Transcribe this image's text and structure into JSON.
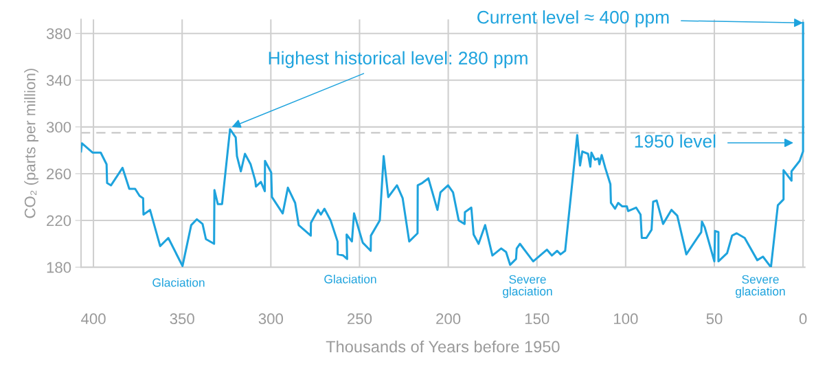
{
  "chart_data": {
    "type": "line",
    "xlabel": "Thousands of Years before 1950",
    "ylabel": "CO₂ (parts per million)",
    "xlim": [
      407,
      -1
    ],
    "ylim": [
      180,
      392
    ],
    "xticks": [
      400,
      350,
      300,
      250,
      200,
      150,
      100,
      50,
      0
    ],
    "yticks": [
      180,
      220,
      260,
      300,
      340,
      380
    ],
    "grid": true,
    "marker": "none",
    "line_style": "solid",
    "ref_lines": [
      {
        "axis": "y",
        "value": 295,
        "color": "#c8c8c8",
        "line_style": "dashed"
      }
    ],
    "annotations": [
      {
        "text": "Highest historical level: 280 ppm",
        "x": 322,
        "y": 300
      },
      {
        "text": "Current level ≈ 400 ppm",
        "x": 0,
        "y": 389
      },
      "1950 level",
      "Glaciation",
      "Glaciation",
      "Severe\nglaciation",
      "Severe\nglaciation"
    ],
    "series": [
      {
        "color": "#1ea3dd",
        "x": [
          407,
          406.5,
          400.4,
          395.9,
          392.6,
          392.3,
          390.1,
          383.6,
          379.8,
          376.5,
          374,
          372,
          371.8,
          368.1,
          362.4,
          357.8,
          349.8,
          344.9,
          341.7,
          338.5,
          336.6,
          332,
          331.8,
          329.9,
          327.5,
          323,
          319.8,
          319.1,
          316.9,
          314.6,
          311.4,
          308.8,
          308.4,
          305.6,
          303.4,
          303.3,
          299.8,
          299.4,
          293.3,
          290.4,
          286.3,
          284.3,
          277.5,
          277.4,
          273.4,
          271.8,
          269.8,
          266.3,
          262.4,
          262.3,
          259.2,
          257,
          257.3,
          254.3,
          253.1,
          248.2,
          243.7,
          243.6,
          238.6,
          236.4,
          233.8,
          228.9,
          225.7,
          222,
          217.3,
          217.2,
          214.7,
          211.2,
          206.1,
          204.4,
          200.1,
          197.3,
          194.1,
          190.8,
          190.6,
          187,
          185.7,
          182.9,
          179.2,
          175.1,
          170.2,
          167.4,
          165.1,
          161.8,
          161.4,
          159.6,
          152.1,
          144.4,
          141.6,
          138.6,
          136.7,
          134.1,
          127.3,
          125.7,
          124.4,
          121.2,
          119.9,
          119.3,
          117.3,
          115.4,
          114.8,
          113.5,
          111.5,
          108.6,
          108.3,
          106,
          104.2,
          101.9,
          99.3,
          98.6,
          94.1,
          91.6,
          90.9,
          88.3,
          85.4,
          84.5,
          82.5,
          78.9,
          74.2,
          70.9,
          65.8,
          57.4,
          57,
          55.4,
          50,
          49.6,
          47.7,
          47.7,
          42.8,
          40,
          37.4,
          32.9,
          25.8,
          22.6,
          18.1,
          14.2,
          11,
          11,
          6.5,
          6.5,
          1.9,
          0,
          0
        ],
        "values": [
          279,
          286,
          278,
          278,
          268,
          252,
          250,
          265,
          247,
          247,
          241,
          239,
          225,
          229,
          198,
          205,
          181,
          216,
          221,
          217,
          204,
          200,
          246,
          234,
          234,
          298,
          291,
          275,
          262,
          277,
          268,
          254,
          249,
          253,
          245,
          271,
          261,
          240,
          226,
          248,
          235,
          216,
          207,
          218,
          229,
          225,
          230,
          220,
          202,
          191,
          190,
          187,
          208,
          202,
          226,
          201,
          194,
          207,
          220,
          275,
          240,
          250,
          239,
          202,
          209,
          250,
          252,
          256,
          229,
          244,
          250,
          244,
          220,
          217,
          227,
          231,
          208,
          200,
          216,
          190,
          196,
          193,
          182,
          187,
          196,
          200,
          185,
          195,
          190,
          194,
          191,
          194,
          293,
          267,
          279,
          277,
          266,
          278,
          272,
          273,
          268,
          276,
          265,
          251,
          235,
          230,
          235,
          232,
          232,
          228,
          231,
          225,
          205,
          205,
          212,
          236,
          237,
          217,
          229,
          224,
          191,
          210,
          219,
          214,
          185,
          211,
          210,
          185,
          192,
          207,
          209,
          205,
          186,
          189,
          180,
          233,
          238,
          263,
          254,
          262,
          271,
          279,
          389
        ]
      }
    ]
  }
}
